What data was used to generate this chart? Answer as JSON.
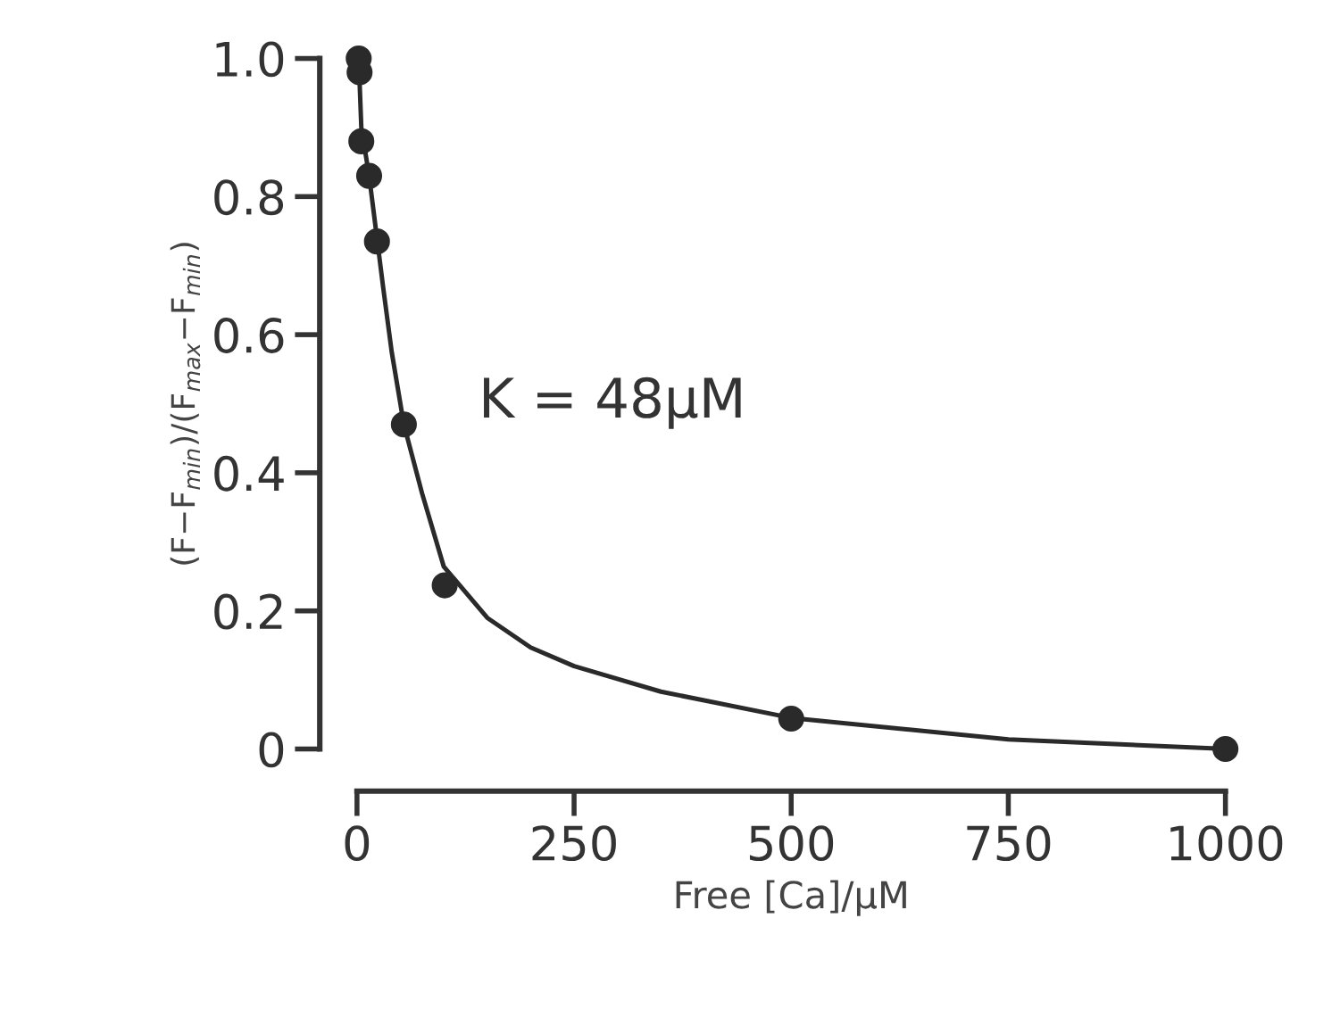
{
  "chart_data": {
    "type": "scatter",
    "xlabel": "Free [Ca]/μM",
    "ylabel": "(F−F$_{min}$)/(F$_{max}$−F$_{min}$)",
    "annotations": [
      "K = 48μM"
    ],
    "series": [
      {
        "color": "#2a2a2a",
        "marker": "circle",
        "x": [
          2,
          3,
          5,
          14,
          23,
          54,
          101,
          500,
          1000
        ],
        "values": [
          1.0,
          0.98,
          0.88,
          0.83,
          0.735,
          0.47,
          0.237,
          0.044,
          0.0
        ]
      },
      {
        "type": "line",
        "color": "#2a2a2a",
        "marker": "none",
        "line_style": "solid",
        "x": [
          2,
          5,
          14,
          23,
          30,
          40,
          54,
          75,
          100,
          150,
          200,
          250,
          350,
          500,
          750,
          1000
        ],
        "values": [
          1.0,
          0.9,
          0.83,
          0.74,
          0.67,
          0.575,
          0.47,
          0.37,
          0.264,
          0.19,
          0.147,
          0.12,
          0.083,
          0.045,
          0.014,
          0.0
        ]
      }
    ],
    "xlim": [
      0,
      1000
    ],
    "ylim": [
      0,
      1.0
    ],
    "xticks": [
      0,
      250,
      500,
      750,
      1000
    ],
    "yticks": [
      {
        "value": 0,
        "label": "0"
      },
      0.2,
      0.4,
      0.6,
      0.8,
      {
        "value": 1.0,
        "label": "1.0"
      }
    ],
    "grid": false,
    "legend": false
  }
}
